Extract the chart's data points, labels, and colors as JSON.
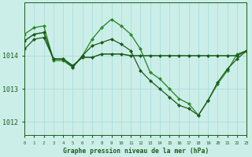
{
  "title": "Graphe pression niveau de la mer (hPa)",
  "bg_color": "#cceee8",
  "grid_color": "#aadddd",
  "line_dark": "#1a5c1a",
  "xlim": [
    0,
    23
  ],
  "ylim": [
    1011.6,
    1015.6
  ],
  "yticks": [
    1012,
    1013,
    1014
  ],
  "xticks": [
    0,
    1,
    2,
    3,
    4,
    5,
    6,
    7,
    8,
    9,
    10,
    11,
    12,
    13,
    14,
    15,
    16,
    17,
    18,
    19,
    20,
    21,
    22,
    23
  ],
  "series": [
    {
      "x": [
        0,
        1,
        2,
        3,
        4,
        5,
        6,
        7,
        8,
        9,
        10,
        11,
        12,
        13,
        14,
        15,
        16,
        17,
        18,
        19,
        20,
        21,
        22,
        23
      ],
      "y": [
        1014.65,
        1014.85,
        1014.9,
        1013.85,
        1013.85,
        1013.65,
        1014.0,
        1014.5,
        1014.85,
        1015.1,
        1014.9,
        1014.65,
        1014.2,
        1013.5,
        1013.3,
        1013.0,
        1012.7,
        1012.55,
        1012.2,
        1012.65,
        1013.15,
        1013.55,
        1014.05,
        1014.15
      ],
      "color": "#2d8c2d",
      "linewidth": 1.0,
      "markersize": 2.5
    },
    {
      "x": [
        0,
        1,
        2,
        3,
        4,
        5,
        6,
        7,
        8,
        9,
        10,
        11,
        12,
        13,
        14,
        15,
        16,
        17,
        18,
        19,
        20,
        21,
        22,
        23
      ],
      "y": [
        1014.45,
        1014.65,
        1014.7,
        1013.9,
        1013.9,
        1013.7,
        1013.95,
        1013.95,
        1014.05,
        1014.05,
        1014.05,
        1014.0,
        1014.0,
        1014.0,
        1014.0,
        1014.0,
        1014.0,
        1014.0,
        1014.0,
        1014.0,
        1014.0,
        1014.0,
        1014.0,
        1014.15
      ],
      "color": "#1a5c1a",
      "linewidth": 1.1,
      "markersize": 2.5
    },
    {
      "x": [
        0,
        1,
        2,
        3,
        4,
        5,
        6,
        7,
        8,
        9,
        10,
        11,
        12,
        13,
        14,
        15,
        16,
        17,
        18,
        19,
        20,
        21,
        22,
        23
      ],
      "y": [
        1014.2,
        1014.5,
        1014.55,
        1013.9,
        1013.9,
        1013.65,
        1014.0,
        1014.3,
        1014.4,
        1014.5,
        1014.35,
        1014.15,
        1013.55,
        1013.25,
        1013.0,
        1012.75,
        1012.5,
        1012.4,
        1012.2,
        1012.65,
        1013.2,
        1013.6,
        1013.9,
        1014.15
      ],
      "color": "#1a5c1a",
      "linewidth": 0.9,
      "markersize": 2.5
    }
  ]
}
